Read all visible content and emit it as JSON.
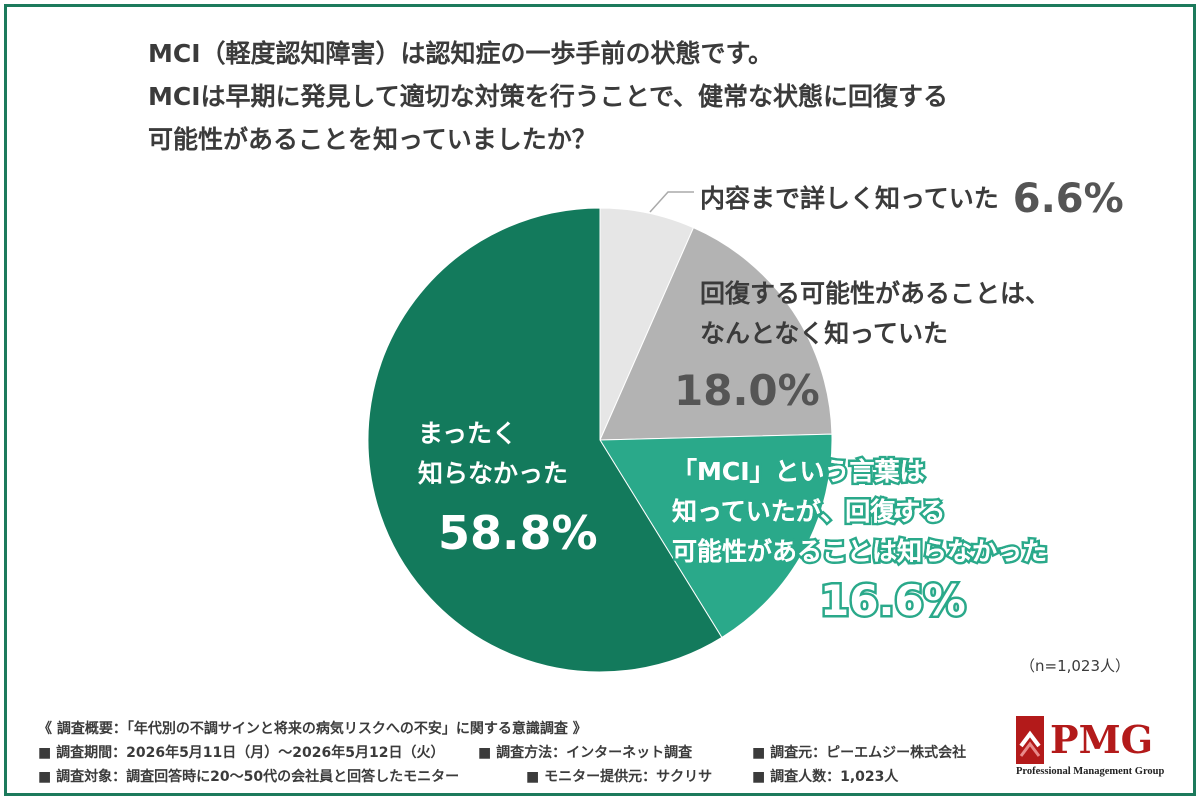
{
  "question": {
    "lines": [
      "MCI（軽度認知障害）は認知症の一歩手前の状態です。",
      "MCIは早期に発見して適切な対策を行うことで、健常な状態に回復する",
      "可能性があることを知っていましたか？"
    ]
  },
  "chart_data": {
    "type": "pie",
    "title": "",
    "start_angle_deg": 0,
    "direction": "clockwise",
    "slices": [
      {
        "label_lines": [
          "内容まで詳しく知っていた"
        ],
        "value": 6.6,
        "value_label": "6.6%",
        "color": "#e6e6e6"
      },
      {
        "label_lines": [
          "回復する可能性があることは、",
          "なんとなく知っていた"
        ],
        "value": 18.0,
        "value_label": "18.0%",
        "color": "#b3b3b3"
      },
      {
        "label_lines": [
          "「MCI」という言葉は",
          "知っていたが、回復する",
          "可能性があることは知らなかった"
        ],
        "value": 16.6,
        "value_label": "16.6%",
        "color": "#2aa98a"
      },
      {
        "label_lines": [
          "まったく",
          "知らなかった"
        ],
        "value": 58.8,
        "value_label": "58.8%",
        "color": "#137a5c"
      }
    ]
  },
  "sample_size": "（n=1,023人）",
  "footer": {
    "overview": "《 調査概要：「年代別の不調サインと将来の病気リスクへの不安」に関する意識調査 》",
    "items": [
      "■ 調査期間：2026年5月11日（月）〜2026年5月12日（火）",
      "■ 調査方法：インターネット調査",
      "■ 調査元：ピーエムジー株式会社",
      "■ 調査対象：調査回答時に20〜50代の会社員と回答したモニター",
      "■ モニター提供元：サクリサ",
      "■ 調査人数：1,023人"
    ]
  },
  "logo": {
    "text": "PMG",
    "subtitle": "Professional Management Group",
    "brand_color": "#b31a1a"
  },
  "colors": {
    "frame": "#1c7a5c"
  }
}
